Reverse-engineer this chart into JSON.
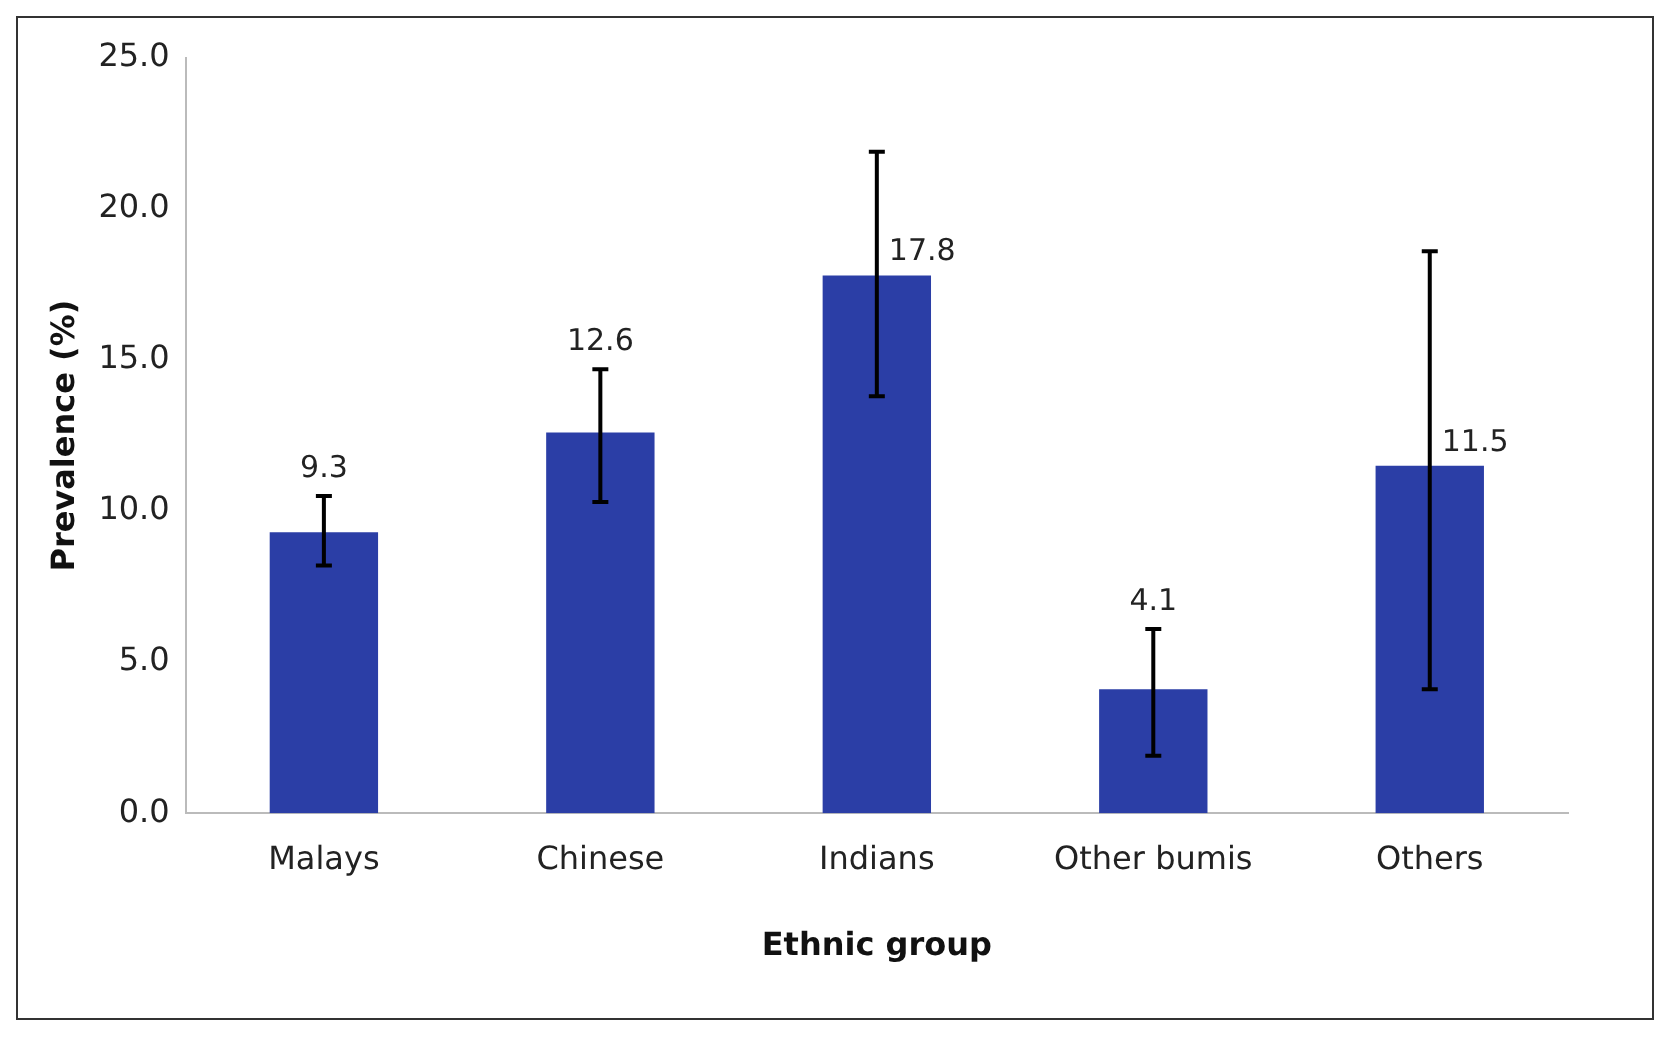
{
  "chart_data": {
    "type": "bar",
    "xlabel": "Ethnic group",
    "ylabel": "Prevalence (%)",
    "categories": [
      "Malays",
      "Chinese",
      "Indians",
      "Other bumis",
      "Others"
    ],
    "values": [
      9.3,
      12.6,
      17.8,
      4.1,
      11.5
    ],
    "errors": [
      [
        8.2,
        10.5
      ],
      [
        10.3,
        14.7
      ],
      [
        13.8,
        21.9
      ],
      [
        1.9,
        6.1
      ],
      [
        4.1,
        18.6
      ]
    ],
    "color": "#2b3ea6",
    "ylim": [
      0,
      25
    ],
    "yticks": [
      {
        "value": 0,
        "label": "0.0"
      },
      {
        "value": 5,
        "label": "5.0"
      },
      {
        "value": 10,
        "label": "10.0"
      },
      {
        "value": 15,
        "label": "15.0"
      },
      {
        "value": 20,
        "label": "20.0"
      },
      {
        "value": 25,
        "label": "25.0"
      }
    ],
    "data_labels": true,
    "grid": false,
    "legend": false
  }
}
